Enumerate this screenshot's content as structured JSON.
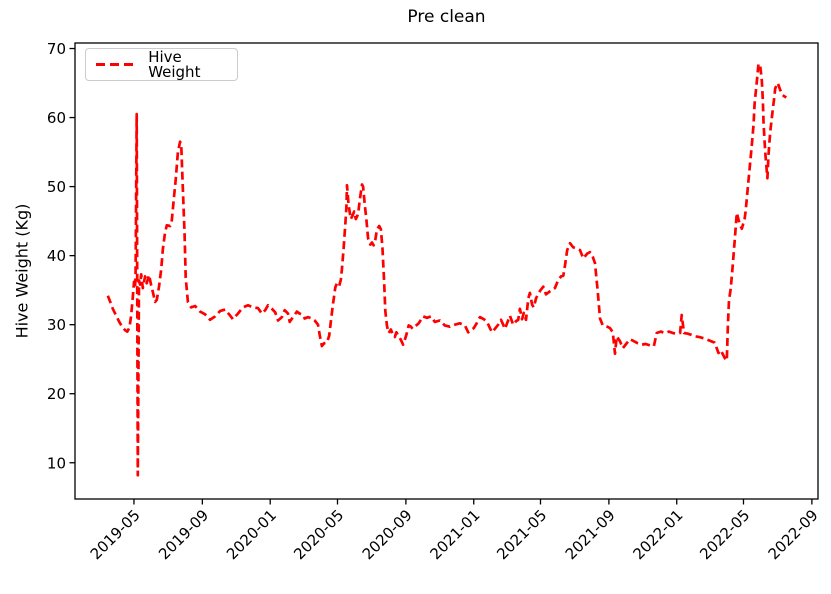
{
  "chart_data": {
    "type": "line",
    "title": "Pre clean",
    "xlabel": "",
    "ylabel": "Hive Weight (Kg)",
    "grid": false,
    "legend": {
      "position": "upper left",
      "entries": [
        {
          "label": "Hive Weight",
          "color": "#ff0000",
          "linestyle": "dashed"
        }
      ]
    },
    "x_axis": {
      "type": "date",
      "min": "2019-01-15",
      "max": "2022-09-12",
      "ticks": [
        "2019-05-01",
        "2019-09-01",
        "2020-01-01",
        "2020-05-01",
        "2020-09-01",
        "2021-01-01",
        "2021-05-01",
        "2021-09-01",
        "2022-01-01",
        "2022-05-01",
        "2022-09-01"
      ],
      "tick_labels": [
        "2019-05",
        "2019-09",
        "2020-01",
        "2020-05",
        "2020-09",
        "2021-01",
        "2021-05",
        "2021-09",
        "2022-01",
        "2022-05",
        "2022-09"
      ],
      "tick_rotation_deg": 45
    },
    "y_axis": {
      "min": 4.75,
      "max": 70.8,
      "ticks": [
        10,
        20,
        30,
        40,
        50,
        60,
        70
      ],
      "tick_labels": [
        "10",
        "20",
        "30",
        "40",
        "50",
        "60",
        "70"
      ]
    },
    "series": [
      {
        "name": "Hive Weight",
        "color": "#ff0000",
        "linestyle": "dashed",
        "linewidth": 2.7,
        "points": [
          [
            "2019-03-15",
            34.2
          ],
          [
            "2019-03-19",
            33.4
          ],
          [
            "2019-03-24",
            32.3
          ],
          [
            "2019-03-30",
            31.3
          ],
          [
            "2019-04-04",
            30.5
          ],
          [
            "2019-04-09",
            29.8
          ],
          [
            "2019-04-15",
            29.2
          ],
          [
            "2019-04-19",
            29.0
          ],
          [
            "2019-04-23",
            29.6
          ],
          [
            "2019-04-26",
            31.4
          ],
          [
            "2019-04-29",
            34.0
          ],
          [
            "2019-05-01",
            36.2
          ],
          [
            "2019-05-03",
            35.4
          ],
          [
            "2019-05-04",
            37.6
          ],
          [
            "2019-05-06",
            60.5
          ],
          [
            "2019-05-08",
            8.2
          ],
          [
            "2019-05-10",
            36.4
          ],
          [
            "2019-05-12",
            35.8
          ],
          [
            "2019-05-14",
            37.3
          ],
          [
            "2019-05-17",
            35.3
          ],
          [
            "2019-05-21",
            37.0
          ],
          [
            "2019-05-24",
            36.0
          ],
          [
            "2019-05-28",
            37.2
          ],
          [
            "2019-06-01",
            35.7
          ],
          [
            "2019-06-04",
            34.7
          ],
          [
            "2019-06-08",
            33.3
          ],
          [
            "2019-06-11",
            33.6
          ],
          [
            "2019-06-15",
            35.5
          ],
          [
            "2019-06-19",
            38.0
          ],
          [
            "2019-06-22",
            41.0
          ],
          [
            "2019-06-26",
            43.4
          ],
          [
            "2019-06-29",
            44.4
          ],
          [
            "2019-07-05",
            44.3
          ],
          [
            "2019-07-08",
            45.1
          ],
          [
            "2019-07-12",
            48.5
          ],
          [
            "2019-07-15",
            51.0
          ],
          [
            "2019-07-19",
            55.0
          ],
          [
            "2019-07-23",
            56.5
          ],
          [
            "2019-07-25",
            56.2
          ],
          [
            "2019-07-28",
            49.5
          ],
          [
            "2019-07-31",
            43.0
          ],
          [
            "2019-08-02",
            36.8
          ],
          [
            "2019-08-06",
            33.3
          ],
          [
            "2019-08-12",
            32.5
          ],
          [
            "2019-08-19",
            32.7
          ],
          [
            "2019-08-28",
            31.9
          ],
          [
            "2019-09-06",
            31.5
          ],
          [
            "2019-09-15",
            30.7
          ],
          [
            "2019-09-24",
            31.2
          ],
          [
            "2019-10-03",
            32.0
          ],
          [
            "2019-10-12",
            32.2
          ],
          [
            "2019-10-21",
            31.3
          ],
          [
            "2019-10-26",
            30.8
          ],
          [
            "2019-11-04",
            31.6
          ],
          [
            "2019-11-13",
            32.5
          ],
          [
            "2019-11-22",
            32.8
          ],
          [
            "2019-12-01",
            32.5
          ],
          [
            "2019-12-10",
            32.4
          ],
          [
            "2019-12-17",
            31.6
          ],
          [
            "2019-12-23",
            32.1
          ],
          [
            "2019-12-28",
            32.8
          ],
          [
            "2020-01-04",
            32.3
          ],
          [
            "2020-01-10",
            31.8
          ],
          [
            "2020-01-15",
            30.6
          ],
          [
            "2020-01-22",
            31.1
          ],
          [
            "2020-01-27",
            32.1
          ],
          [
            "2020-02-02",
            31.6
          ],
          [
            "2020-02-05",
            30.4
          ],
          [
            "2020-02-11",
            31.1
          ],
          [
            "2020-02-18",
            31.9
          ],
          [
            "2020-02-23",
            31.6
          ],
          [
            "2020-02-29",
            31.4
          ],
          [
            "2020-03-03",
            30.9
          ],
          [
            "2020-03-09",
            31.1
          ],
          [
            "2020-03-16",
            30.9
          ],
          [
            "2020-03-21",
            30.6
          ],
          [
            "2020-03-27",
            30.0
          ],
          [
            "2020-03-30",
            28.5
          ],
          [
            "2020-04-03",
            26.9
          ],
          [
            "2020-04-07",
            27.3
          ],
          [
            "2020-04-12",
            27.4
          ],
          [
            "2020-04-16",
            28.4
          ],
          [
            "2020-04-19",
            30.4
          ],
          [
            "2020-04-23",
            33.0
          ],
          [
            "2020-04-27",
            35.4
          ],
          [
            "2020-04-30",
            36.0
          ],
          [
            "2020-05-04",
            35.6
          ],
          [
            "2020-05-07",
            36.5
          ],
          [
            "2020-05-09",
            38.0
          ],
          [
            "2020-05-12",
            41.0
          ],
          [
            "2020-05-15",
            44.5
          ],
          [
            "2020-05-17",
            47.0
          ],
          [
            "2020-05-18",
            50.2
          ],
          [
            "2020-05-21",
            47.3
          ],
          [
            "2020-05-25",
            45.3
          ],
          [
            "2020-05-28",
            45.8
          ],
          [
            "2020-05-31",
            46.4
          ],
          [
            "2020-06-03",
            45.3
          ],
          [
            "2020-06-07",
            46.0
          ],
          [
            "2020-06-10",
            48.0
          ],
          [
            "2020-06-14",
            50.3
          ],
          [
            "2020-06-16",
            50.0
          ],
          [
            "2020-06-19",
            47.5
          ],
          [
            "2020-06-22",
            45.2
          ],
          [
            "2020-06-25",
            42.5
          ],
          [
            "2020-06-29",
            41.6
          ],
          [
            "2020-07-02",
            41.9
          ],
          [
            "2020-07-05",
            41.5
          ],
          [
            "2020-07-08",
            42.3
          ],
          [
            "2020-07-11",
            43.8
          ],
          [
            "2020-07-15",
            44.3
          ],
          [
            "2020-07-18",
            43.8
          ],
          [
            "2020-07-21",
            41.0
          ],
          [
            "2020-07-24",
            36.0
          ],
          [
            "2020-07-26",
            32.0
          ],
          [
            "2020-07-29",
            29.8
          ],
          [
            "2020-08-01",
            28.8
          ],
          [
            "2020-08-05",
            29.3
          ],
          [
            "2020-08-08",
            28.6
          ],
          [
            "2020-08-12",
            28.2
          ],
          [
            "2020-08-15",
            28.9
          ],
          [
            "2020-08-19",
            28.3
          ],
          [
            "2020-08-23",
            27.8
          ],
          [
            "2020-08-27",
            27.1
          ],
          [
            "2020-08-30",
            27.8
          ],
          [
            "2020-09-02",
            28.6
          ],
          [
            "2020-09-06",
            29.9
          ],
          [
            "2020-09-10",
            29.7
          ],
          [
            "2020-09-13",
            29.4
          ],
          [
            "2020-09-17",
            29.7
          ],
          [
            "2020-09-24",
            30.2
          ],
          [
            "2020-10-02",
            31.2
          ],
          [
            "2020-10-09",
            31.0
          ],
          [
            "2020-10-16",
            31.2
          ],
          [
            "2020-10-23",
            30.4
          ],
          [
            "2020-11-01",
            30.6
          ],
          [
            "2020-11-10",
            29.9
          ],
          [
            "2020-11-19",
            29.7
          ],
          [
            "2020-11-28",
            30.0
          ],
          [
            "2020-12-07",
            30.2
          ],
          [
            "2020-12-16",
            29.9
          ],
          [
            "2020-12-22",
            28.9
          ],
          [
            "2020-12-27",
            29.2
          ],
          [
            "2021-01-01",
            29.5
          ],
          [
            "2021-01-07",
            30.3
          ],
          [
            "2021-01-12",
            31.1
          ],
          [
            "2021-01-19",
            30.8
          ],
          [
            "2021-01-25",
            30.4
          ],
          [
            "2021-01-30",
            29.5
          ],
          [
            "2021-02-03",
            28.9
          ],
          [
            "2021-02-08",
            29.4
          ],
          [
            "2021-02-14",
            30.0
          ],
          [
            "2021-02-19",
            30.7
          ],
          [
            "2021-02-23",
            30.0
          ],
          [
            "2021-02-26",
            29.4
          ],
          [
            "2021-03-02",
            30.2
          ],
          [
            "2021-03-07",
            31.3
          ],
          [
            "2021-03-13",
            30.0
          ],
          [
            "2021-03-18",
            30.5
          ],
          [
            "2021-03-22",
            30.7
          ],
          [
            "2021-03-25",
            32.3
          ],
          [
            "2021-03-29",
            30.8
          ],
          [
            "2021-04-01",
            31.7
          ],
          [
            "2021-04-05",
            30.7
          ],
          [
            "2021-04-09",
            33.8
          ],
          [
            "2021-04-12",
            34.6
          ],
          [
            "2021-04-16",
            32.9
          ],
          [
            "2021-04-19",
            32.5
          ],
          [
            "2021-04-23",
            33.8
          ],
          [
            "2021-04-27",
            34.5
          ],
          [
            "2021-05-01",
            35.0
          ],
          [
            "2021-05-06",
            35.5
          ],
          [
            "2021-05-11",
            34.4
          ],
          [
            "2021-05-16",
            34.7
          ],
          [
            "2021-05-22",
            35.1
          ],
          [
            "2021-05-27",
            35.3
          ],
          [
            "2021-06-02",
            36.5
          ],
          [
            "2021-06-07",
            37.0
          ],
          [
            "2021-06-11",
            37.1
          ],
          [
            "2021-06-14",
            38.6
          ],
          [
            "2021-06-18",
            40.8
          ],
          [
            "2021-06-23",
            41.8
          ],
          [
            "2021-06-29",
            41.2
          ],
          [
            "2021-07-06",
            41.0
          ],
          [
            "2021-07-11",
            40.8
          ],
          [
            "2021-07-17",
            39.6
          ],
          [
            "2021-07-24",
            40.3
          ],
          [
            "2021-07-29",
            40.5
          ],
          [
            "2021-08-03",
            39.8
          ],
          [
            "2021-08-07",
            38.9
          ],
          [
            "2021-08-12",
            34.7
          ],
          [
            "2021-08-16",
            30.9
          ],
          [
            "2021-08-21",
            29.9
          ],
          [
            "2021-08-29",
            29.7
          ],
          [
            "2021-09-03",
            29.5
          ],
          [
            "2021-09-08",
            28.9
          ],
          [
            "2021-09-12",
            25.8
          ],
          [
            "2021-09-15",
            28.3
          ],
          [
            "2021-09-21",
            27.6
          ],
          [
            "2021-09-26",
            26.6
          ],
          [
            "2021-10-02",
            27.2
          ],
          [
            "2021-10-09",
            27.9
          ],
          [
            "2021-10-16",
            27.6
          ],
          [
            "2021-10-23",
            27.3
          ],
          [
            "2021-10-30",
            27.1
          ],
          [
            "2021-11-06",
            27.2
          ],
          [
            "2021-11-14",
            27.0
          ],
          [
            "2021-11-21",
            26.9
          ],
          [
            "2021-11-26",
            28.8
          ],
          [
            "2021-12-03",
            29.0
          ],
          [
            "2021-12-11",
            28.8
          ],
          [
            "2021-12-18",
            29.0
          ],
          [
            "2021-12-25",
            28.8
          ],
          [
            "2022-01-01",
            28.7
          ],
          [
            "2022-01-07",
            28.8
          ],
          [
            "2022-01-10",
            31.4
          ],
          [
            "2022-01-14",
            28.8
          ],
          [
            "2022-01-21",
            28.7
          ],
          [
            "2022-01-28",
            28.5
          ],
          [
            "2022-02-04",
            28.3
          ],
          [
            "2022-02-11",
            28.2
          ],
          [
            "2022-02-20",
            28.0
          ],
          [
            "2022-03-01",
            27.7
          ],
          [
            "2022-03-10",
            27.4
          ],
          [
            "2022-03-17",
            25.9
          ],
          [
            "2022-03-21",
            26.3
          ],
          [
            "2022-03-25",
            25.7
          ],
          [
            "2022-03-28",
            25.2
          ],
          [
            "2022-04-01",
            24.8
          ],
          [
            "2022-04-03",
            30.0
          ],
          [
            "2022-04-05",
            33.5
          ],
          [
            "2022-04-08",
            35.2
          ],
          [
            "2022-04-11",
            38.0
          ],
          [
            "2022-04-15",
            42.0
          ],
          [
            "2022-04-19",
            46.2
          ],
          [
            "2022-04-24",
            44.6
          ],
          [
            "2022-04-28",
            43.9
          ],
          [
            "2022-05-03",
            45.3
          ],
          [
            "2022-05-05",
            46.5
          ],
          [
            "2022-05-09",
            50.0
          ],
          [
            "2022-05-12",
            52.6
          ],
          [
            "2022-05-16",
            56.0
          ],
          [
            "2022-05-19",
            58.9
          ],
          [
            "2022-05-21",
            62.0
          ],
          [
            "2022-05-25",
            65.2
          ],
          [
            "2022-05-28",
            67.8
          ],
          [
            "2022-05-31",
            67.5
          ],
          [
            "2022-06-03",
            65.4
          ],
          [
            "2022-06-05",
            62.3
          ],
          [
            "2022-06-06",
            59.4
          ],
          [
            "2022-06-08",
            56.5
          ],
          [
            "2022-06-10",
            54.1
          ],
          [
            "2022-06-13",
            51.2
          ],
          [
            "2022-06-15",
            54.6
          ],
          [
            "2022-06-18",
            57.9
          ],
          [
            "2022-06-22",
            60.7
          ],
          [
            "2022-06-25",
            62.7
          ],
          [
            "2022-06-27",
            64.2
          ],
          [
            "2022-07-01",
            65.0
          ],
          [
            "2022-07-03",
            64.7
          ],
          [
            "2022-07-06",
            64.0
          ],
          [
            "2022-07-10",
            63.3
          ],
          [
            "2022-07-13",
            63.1
          ],
          [
            "2022-07-17",
            62.9
          ]
        ]
      }
    ]
  }
}
